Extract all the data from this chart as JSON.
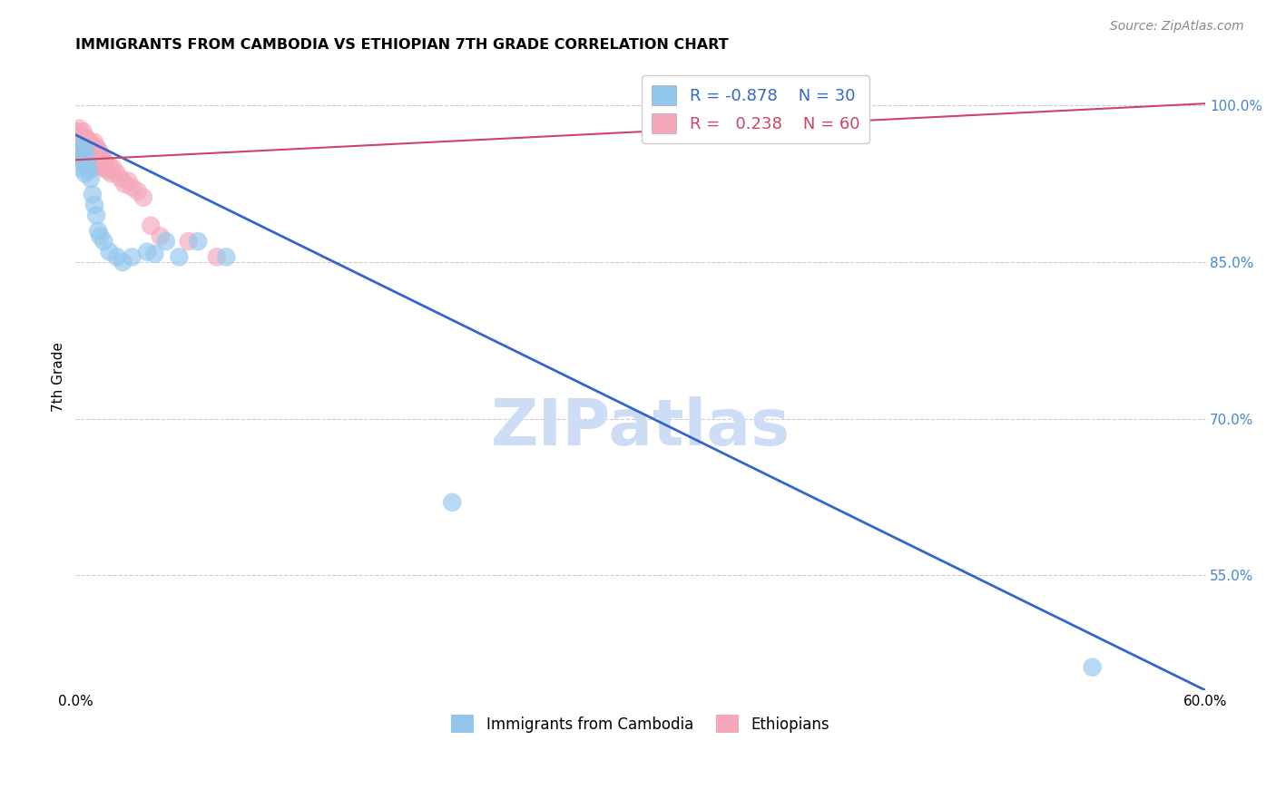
{
  "title": "IMMIGRANTS FROM CAMBODIA VS ETHIOPIAN 7TH GRADE CORRELATION CHART",
  "source_text": "Source: ZipAtlas.com",
  "ylabel": "7th Grade",
  "xlim": [
    0.0,
    0.6
  ],
  "ylim": [
    0.44,
    1.04
  ],
  "xticks": [
    0.0,
    0.1,
    0.2,
    0.3,
    0.4,
    0.5,
    0.6
  ],
  "xticklabels": [
    "0.0%",
    "",
    "",
    "",
    "",
    "",
    "60.0%"
  ],
  "yticks_right": [
    0.55,
    0.7,
    0.85,
    1.0
  ],
  "ytick_right_labels": [
    "55.0%",
    "70.0%",
    "85.0%",
    "100.0%"
  ],
  "watermark": "ZIPatlas",
  "watermark_color": "#ccddf5",
  "background_color": "#ffffff",
  "grid_color": "#cccccc",
  "cambodia_color": "#93c6ed",
  "ethiopian_color": "#f4a7b9",
  "cambodia_line_color": "#3366cc",
  "ethiopian_line_color": "#cc4466",
  "legend_R_cambodia": "-0.878",
  "legend_N_cambodia": "30",
  "legend_R_ethiopian": "0.238",
  "legend_N_ethiopian": "60",
  "cambodia_x": [
    0.001,
    0.002,
    0.003,
    0.003,
    0.004,
    0.004,
    0.005,
    0.005,
    0.006,
    0.006,
    0.007,
    0.008,
    0.009,
    0.01,
    0.011,
    0.012,
    0.013,
    0.015,
    0.018,
    0.022,
    0.025,
    0.03,
    0.038,
    0.042,
    0.048,
    0.055,
    0.065,
    0.08,
    0.2,
    0.54
  ],
  "cambodia_y": [
    0.96,
    0.955,
    0.95,
    0.94,
    0.96,
    0.945,
    0.958,
    0.935,
    0.948,
    0.942,
    0.938,
    0.93,
    0.915,
    0.905,
    0.895,
    0.88,
    0.875,
    0.87,
    0.86,
    0.855,
    0.85,
    0.855,
    0.86,
    0.858,
    0.87,
    0.855,
    0.87,
    0.855,
    0.62,
    0.462
  ],
  "ethiopian_x": [
    0.001,
    0.001,
    0.001,
    0.002,
    0.002,
    0.002,
    0.003,
    0.003,
    0.003,
    0.003,
    0.004,
    0.004,
    0.004,
    0.004,
    0.005,
    0.005,
    0.005,
    0.006,
    0.006,
    0.006,
    0.006,
    0.007,
    0.007,
    0.007,
    0.007,
    0.008,
    0.008,
    0.008,
    0.008,
    0.009,
    0.009,
    0.01,
    0.01,
    0.01,
    0.011,
    0.011,
    0.012,
    0.012,
    0.013,
    0.013,
    0.014,
    0.014,
    0.015,
    0.015,
    0.016,
    0.017,
    0.018,
    0.019,
    0.02,
    0.022,
    0.024,
    0.026,
    0.028,
    0.03,
    0.033,
    0.036,
    0.04,
    0.045,
    0.06,
    0.075
  ],
  "ethiopian_y": [
    0.975,
    0.968,
    0.962,
    0.978,
    0.97,
    0.96,
    0.972,
    0.965,
    0.958,
    0.95,
    0.975,
    0.968,
    0.96,
    0.952,
    0.97,
    0.962,
    0.954,
    0.968,
    0.96,
    0.952,
    0.944,
    0.966,
    0.958,
    0.95,
    0.942,
    0.964,
    0.956,
    0.948,
    0.94,
    0.96,
    0.952,
    0.965,
    0.958,
    0.95,
    0.96,
    0.952,
    0.958,
    0.95,
    0.955,
    0.948,
    0.95,
    0.942,
    0.948,
    0.94,
    0.945,
    0.938,
    0.942,
    0.935,
    0.94,
    0.935,
    0.93,
    0.925,
    0.928,
    0.922,
    0.918,
    0.912,
    0.885,
    0.875,
    0.87,
    0.855
  ],
  "camb_line_x": [
    0.0,
    0.6
  ],
  "camb_line_y": [
    0.972,
    0.44
  ],
  "eth_line_x": [
    0.0,
    0.6
  ],
  "eth_line_y": [
    0.948,
    1.002
  ]
}
